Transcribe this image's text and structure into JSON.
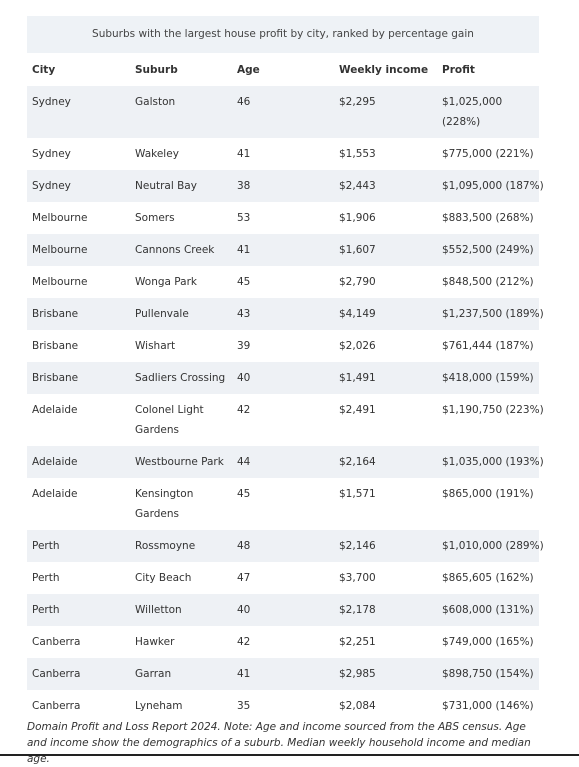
{
  "header": {
    "caption": "Suburbs with the largest house profit by city, ranked by percentage gain"
  },
  "table": {
    "columns": [
      "City",
      "Suburb",
      "Age",
      "Weekly income",
      "Profit"
    ],
    "rows": [
      [
        "Sydney",
        "Galston",
        "46",
        "$2,295",
        "$1,025,000 (228%)"
      ],
      [
        "Sydney",
        "Wakeley",
        "41",
        "$1,553",
        "$775,000 (221%)"
      ],
      [
        "Sydney",
        "Neutral Bay",
        "38",
        "$2,443",
        "$1,095,000 (187%)"
      ],
      [
        "Melbourne",
        "Somers",
        "53",
        "$1,906",
        "$883,500 (268%)"
      ],
      [
        "Melbourne",
        "Cannons Creek",
        "41",
        "$1,607",
        "$552,500 (249%)"
      ],
      [
        "Melbourne",
        "Wonga Park",
        "45",
        "$2,790",
        "$848,500 (212%)"
      ],
      [
        "Brisbane",
        "Pullenvale",
        "43",
        "$4,149",
        "$1,237,500 (189%)"
      ],
      [
        "Brisbane",
        "Wishart",
        "39",
        "$2,026",
        "$761,444 (187%)"
      ],
      [
        "Brisbane",
        "Sadliers Crossing",
        "40",
        "$1,491",
        "$418,000 (159%)"
      ],
      [
        "Adelaide",
        "Colonel Light Gardens",
        "42",
        "$2,491",
        "$1,190,750 (223%)"
      ],
      [
        "Adelaide",
        "Westbourne Park",
        "44",
        "$2,164",
        "$1,035,000 (193%)"
      ],
      [
        "Adelaide",
        "Kensington Gardens",
        "45",
        "$1,571",
        "$865,000 (191%)"
      ],
      [
        "Perth",
        "Rossmoyne",
        "48",
        "$2,146",
        "$1,010,000 (289%)"
      ],
      [
        "Perth",
        "City Beach",
        "47",
        "$3,700",
        "$865,605 (162%)"
      ],
      [
        "Perth",
        "Willetton",
        "40",
        "$2,178",
        "$608,000 (131%)"
      ],
      [
        "Canberra",
        "Hawker",
        "42",
        "$2,251",
        "$749,000 (165%)"
      ],
      [
        "Canberra",
        "Garran",
        "41",
        "$2,985",
        "$898,750 (154%)"
      ],
      [
        "Canberra",
        "Lyneham",
        "35",
        "$2,084",
        "$731,000 (146%)"
      ]
    ]
  },
  "footnote": "Domain Profit and Loss Report 2024. Note: Age and income sourced from the ABS census. Age and income show the demographics of a suburb. Median weekly household income and median age."
}
